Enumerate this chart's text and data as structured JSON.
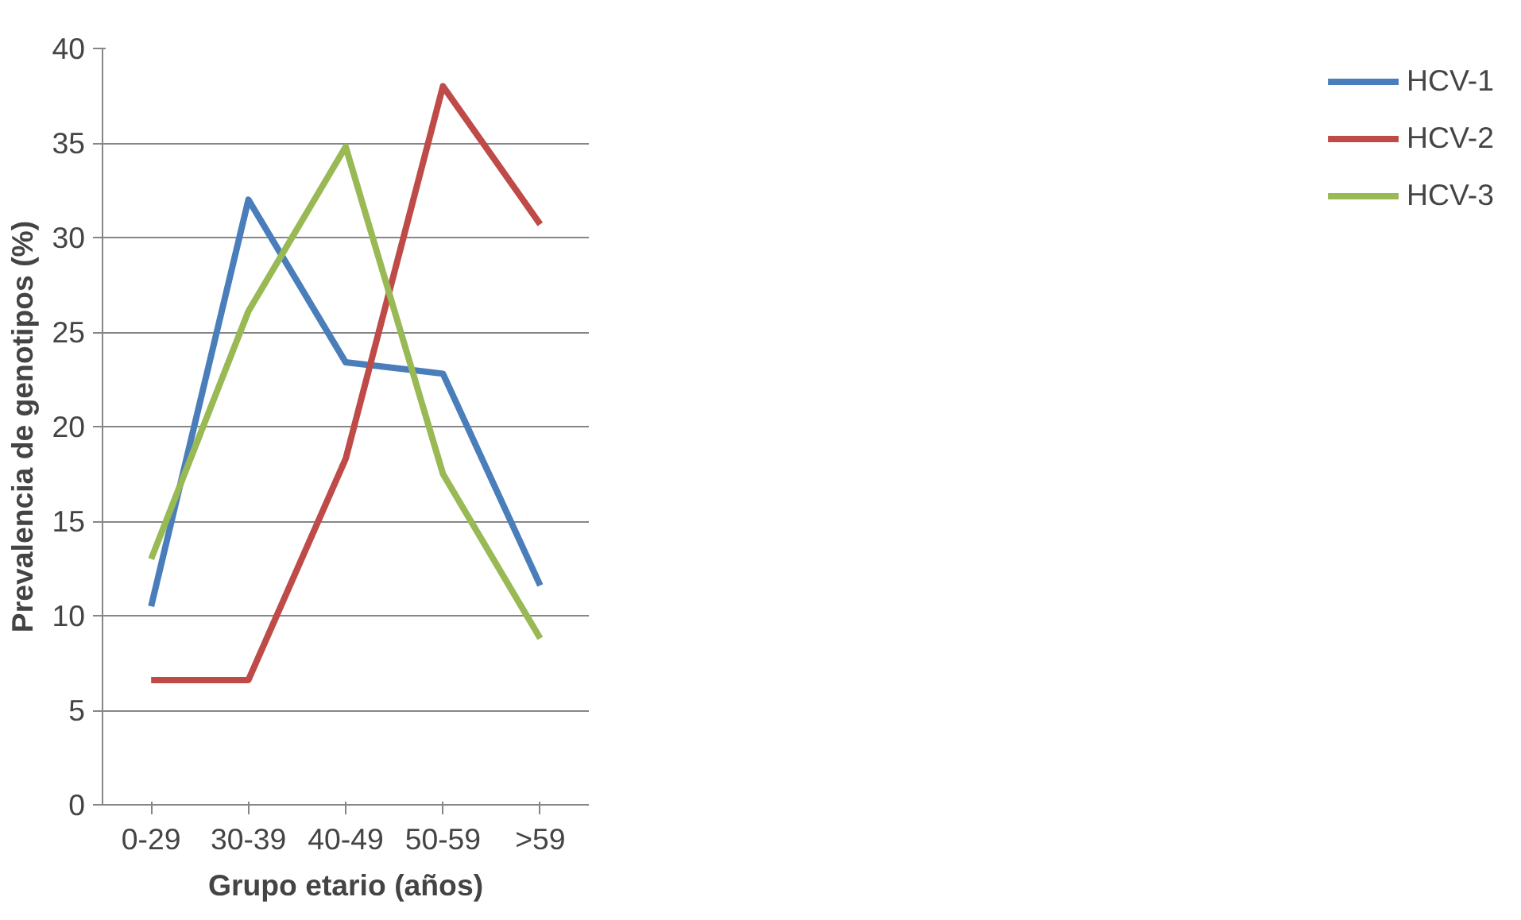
{
  "chart_data": {
    "type": "line",
    "xlabel": "Grupo etario (años)",
    "ylabel": "Prevalencia de genotipos (%)",
    "categories": [
      "0-29",
      "30-39",
      "40-49",
      "50-59",
      ">59"
    ],
    "series": [
      {
        "name": "HCV-1",
        "color": "#4a7ebb",
        "values": [
          10.5,
          32.0,
          23.4,
          22.8,
          11.6
        ]
      },
      {
        "name": "HCV-2",
        "color": "#be4b48",
        "values": [
          6.6,
          6.6,
          18.3,
          38.0,
          30.7
        ]
      },
      {
        "name": "HCV-3",
        "color": "#98b954",
        "values": [
          13.0,
          26.1,
          34.8,
          17.5,
          8.8
        ]
      }
    ],
    "ylim": [
      0,
      40
    ],
    "yticks": [
      0,
      5,
      10,
      15,
      20,
      25,
      30,
      35,
      40
    ],
    "grid": "y",
    "legend": "right",
    "marker": "none",
    "line_style": "solid"
  }
}
